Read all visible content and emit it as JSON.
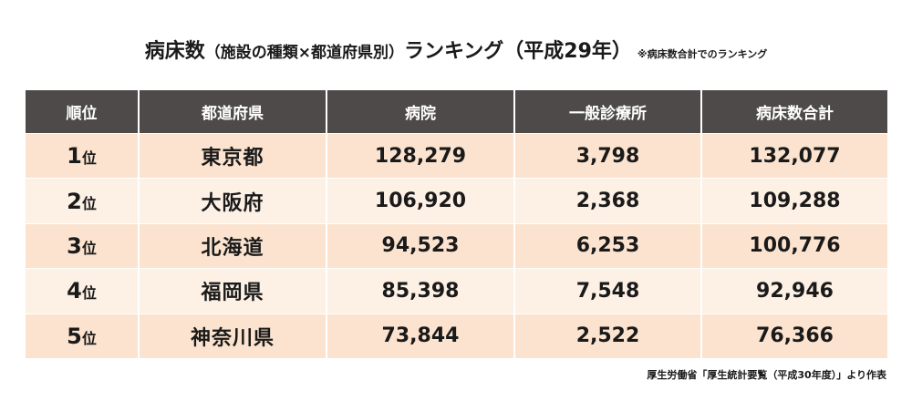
{
  "title": {
    "main_before": "病床数",
    "paren_part": "（施設の種類×都道府県別）",
    "main_after": "ランキング（平成29年）",
    "subnote": "※病床数合計でのランキング"
  },
  "table": {
    "headers": [
      "順位",
      "都道府県",
      "病院",
      "一般診療所",
      "病床数合計"
    ],
    "rank_suffix": "位",
    "rows": [
      {
        "rank": "1",
        "prefecture": "東京都",
        "hospital": "128,279",
        "clinic": "3,798",
        "total": "132,077"
      },
      {
        "rank": "2",
        "prefecture": "大阪府",
        "hospital": "106,920",
        "clinic": "2,368",
        "total": "109,288"
      },
      {
        "rank": "3",
        "prefecture": "北海道",
        "hospital": "94,523",
        "clinic": "6,253",
        "total": "100,776"
      },
      {
        "rank": "4",
        "prefecture": "福岡県",
        "hospital": "85,398",
        "clinic": "7,548",
        "total": "92,946"
      },
      {
        "rank": "5",
        "prefecture": "神奈川県",
        "hospital": "73,844",
        "clinic": "2,522",
        "total": "76,366"
      }
    ]
  },
  "source": "厚生労働省「厚生統計要覧（平成30年度）」より作表",
  "colors": {
    "header_bg": "#4f4a4a",
    "row_odd_bg": "#fbe3cf",
    "row_even_bg": "#fdf0e4"
  }
}
